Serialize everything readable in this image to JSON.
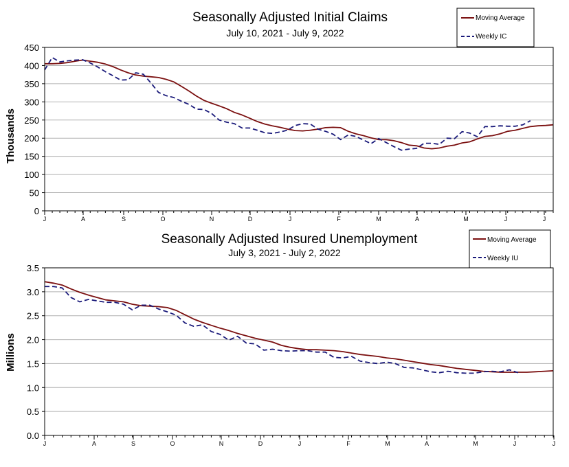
{
  "colors": {
    "moving_average": "#7b1010",
    "weekly": "#1a1a7a",
    "grid": "#b0b0b0"
  },
  "chart_data": [
    {
      "type": "line",
      "title": "Seasonally Adjusted Initial Claims",
      "subtitle": "July 10, 2021 - July 9, 2022",
      "ylabel": "Thousands",
      "xlabel": "",
      "ylim": [
        0,
        450
      ],
      "yticks": [
        "0",
        "50",
        "100",
        "150",
        "200",
        "250",
        "300",
        "350",
        "400",
        "450"
      ],
      "month_labels": [
        "J",
        "A",
        "S",
        "O",
        "N",
        "D",
        "J",
        "F",
        "M",
        "A",
        "M",
        "J",
        "J"
      ],
      "grid": true,
      "legend": "top-right",
      "series": [
        {
          "name": "Moving Average",
          "style": "solid",
          "values": [
            405,
            405,
            406,
            408,
            412,
            415,
            412,
            409,
            404,
            397,
            388,
            380,
            374,
            371,
            369,
            367,
            362,
            355,
            343,
            330,
            316,
            304,
            296,
            289,
            281,
            271,
            264,
            255,
            246,
            239,
            234,
            230,
            225,
            221,
            220,
            222,
            225,
            229,
            230,
            229,
            219,
            212,
            207,
            201,
            196,
            196,
            193,
            188,
            181,
            179,
            173,
            171,
            173,
            178,
            181,
            187,
            190,
            198,
            205,
            207,
            212,
            219,
            222,
            227,
            232,
            234,
            235,
            237
          ],
          "weeks": [
            0,
            1,
            2,
            3,
            4,
            5,
            6,
            7,
            8,
            9,
            10,
            11,
            12,
            13,
            14,
            15,
            16,
            17,
            18,
            19,
            20,
            21,
            22,
            23,
            24,
            25,
            26,
            27,
            28,
            29,
            30,
            31,
            32,
            33,
            34,
            35,
            36,
            37,
            38,
            39,
            40,
            41,
            42,
            43,
            44,
            45,
            46,
            47,
            48,
            49,
            50,
            51,
            52,
            53,
            54,
            55,
            56,
            57,
            58,
            59,
            60,
            61,
            62,
            63,
            64,
            65,
            66,
            67
          ]
        },
        {
          "name": "Weekly IC",
          "style": "dashed",
          "values": [
            388,
            422,
            410,
            413,
            415,
            416,
            407,
            396,
            383,
            372,
            360,
            361,
            380,
            376,
            352,
            326,
            317,
            312,
            302,
            293,
            280,
            279,
            268,
            250,
            244,
            240,
            228,
            228,
            222,
            215,
            213,
            217,
            222,
            235,
            240,
            239,
            225,
            219,
            211,
            196,
            209,
            205,
            195,
            185,
            199,
            188,
            177,
            167,
            170,
            172,
            186,
            186,
            183,
            200,
            199,
            218,
            214,
            204,
            232,
            232,
            234,
            233,
            233,
            237,
            248
          ],
          "weeks": [
            0,
            1,
            2,
            3,
            4,
            5,
            6,
            7,
            8,
            9,
            10,
            11,
            12,
            13,
            14,
            15,
            16,
            17,
            18,
            19,
            20,
            21,
            22,
            23,
            24,
            25,
            26,
            27,
            28,
            29,
            30,
            31,
            32,
            33,
            34,
            35,
            36,
            37,
            38,
            39,
            40,
            41,
            42,
            43,
            44,
            45,
            46,
            47,
            48,
            49,
            50,
            51,
            52,
            53,
            54,
            55,
            56,
            57,
            58,
            59,
            60,
            61,
            62,
            63,
            64
          ]
        }
      ]
    },
    {
      "type": "line",
      "title": "Seasonally Adjusted Insured Unemployment",
      "subtitle": "July 3, 2021 - July 2, 2022",
      "ylabel": "Millions",
      "xlabel": "",
      "ylim": [
        0,
        3.5
      ],
      "yticks": [
        "0.0",
        "0.5",
        "1.0",
        "1.5",
        "2.0",
        "2.5",
        "3.0",
        "3.5"
      ],
      "month_labels": [
        "J",
        "A",
        "S",
        "O",
        "N",
        "D",
        "J",
        "F",
        "M",
        "A",
        "M",
        "J",
        "J"
      ],
      "grid": true,
      "legend": "top-right",
      "series": [
        {
          "name": "Moving Average",
          "style": "solid",
          "values": [
            3.21,
            3.18,
            3.14,
            3.06,
            2.99,
            2.93,
            2.88,
            2.83,
            2.81,
            2.79,
            2.74,
            2.71,
            2.7,
            2.69,
            2.67,
            2.61,
            2.52,
            2.43,
            2.36,
            2.3,
            2.24,
            2.19,
            2.13,
            2.08,
            2.03,
            1.99,
            1.95,
            1.88,
            1.84,
            1.81,
            1.79,
            1.79,
            1.78,
            1.77,
            1.75,
            1.72,
            1.69,
            1.67,
            1.65,
            1.62,
            1.6,
            1.57,
            1.54,
            1.51,
            1.48,
            1.46,
            1.43,
            1.4,
            1.38,
            1.36,
            1.34,
            1.33,
            1.32,
            1.32,
            1.32,
            1.32,
            1.33,
            1.34,
            1.35
          ],
          "weeks": [
            0,
            1,
            2,
            3,
            4,
            5,
            6,
            7,
            8,
            9,
            10,
            11,
            12,
            13,
            14,
            15,
            16,
            17,
            18,
            19,
            20,
            21,
            22,
            23,
            24,
            25,
            26,
            27,
            28,
            29,
            30,
            31,
            32,
            33,
            34,
            35,
            36,
            37,
            38,
            39,
            40,
            41,
            42,
            43,
            44,
            45,
            46,
            47,
            48,
            49,
            50,
            51,
            52,
            53,
            54,
            55,
            56,
            57,
            58
          ]
        },
        {
          "name": "Weekly IU",
          "style": "dashed",
          "values": [
            3.11,
            3.11,
            3.08,
            2.88,
            2.79,
            2.84,
            2.81,
            2.78,
            2.78,
            2.74,
            2.62,
            2.72,
            2.72,
            2.64,
            2.58,
            2.51,
            2.35,
            2.28,
            2.31,
            2.17,
            2.11,
            1.99,
            2.07,
            1.93,
            1.91,
            1.78,
            1.8,
            1.77,
            1.76,
            1.77,
            1.77,
            1.74,
            1.74,
            1.63,
            1.62,
            1.65,
            1.55,
            1.52,
            1.5,
            1.53,
            1.5,
            1.42,
            1.41,
            1.37,
            1.33,
            1.31,
            1.34,
            1.31,
            1.3,
            1.3,
            1.33,
            1.34,
            1.33,
            1.37,
            1.31
          ],
          "weeks": [
            0,
            1,
            2,
            3,
            4,
            5,
            6,
            7,
            8,
            9,
            10,
            11,
            12,
            13,
            14,
            15,
            16,
            17,
            18,
            19,
            20,
            21,
            22,
            23,
            24,
            25,
            26,
            27,
            28,
            29,
            30,
            31,
            32,
            33,
            34,
            35,
            36,
            37,
            38,
            39,
            40,
            41,
            42,
            43,
            44,
            45,
            46,
            47,
            48,
            49,
            50,
            51,
            52,
            53,
            54
          ]
        }
      ]
    }
  ]
}
